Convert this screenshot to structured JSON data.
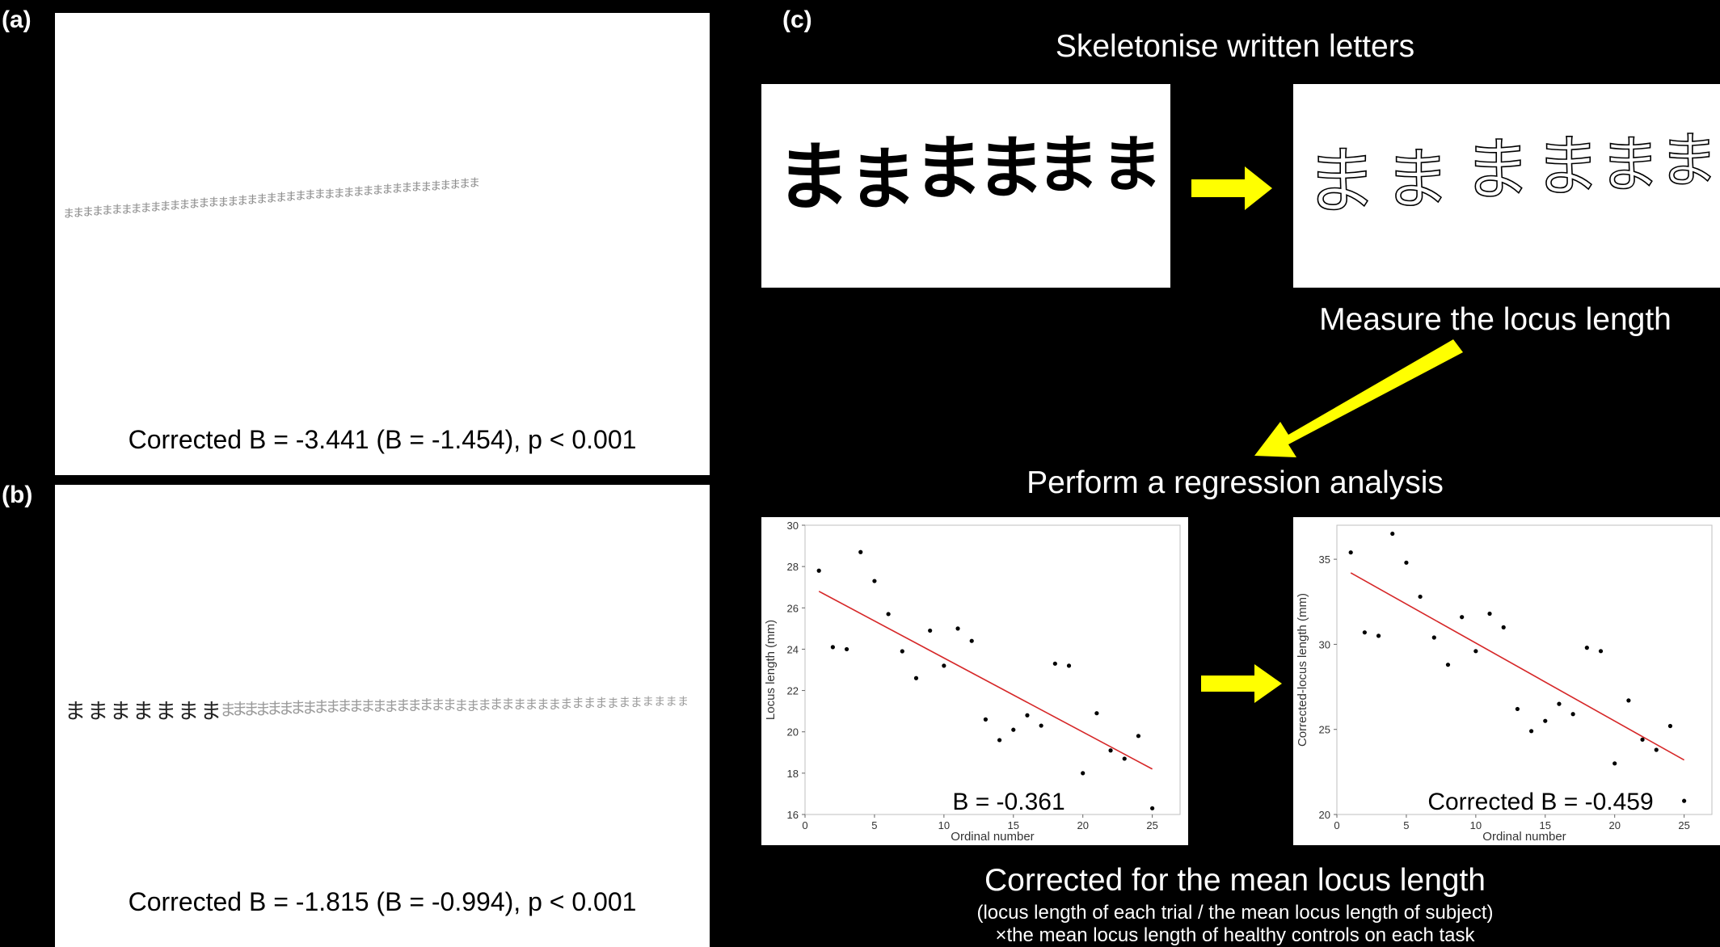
{
  "panel_a": {
    "label": "(a)",
    "caption": "Corrected B = -3.441 (B = -1.454), p < 0.001",
    "glyph": "ま"
  },
  "panel_b": {
    "label": "(b)",
    "caption": "Corrected B = -1.815 (B = -0.994), p < 0.001",
    "glyph": "ま"
  },
  "panel_c": {
    "label": "(c)",
    "step1_title": "Skeletonise written letters",
    "step2_title": "Measure the locus length",
    "step3_title": "Perform a regression analysis",
    "step4_title": "Corrected for the mean locus length",
    "step4_note_line1": "(locus length of each trial / the mean locus length of subject)",
    "step4_note_line2": "×the mean locus length of healthy controls on each task",
    "glyph": "ま",
    "arrow_color": "#ffff00"
  },
  "chart_data": [
    {
      "type": "scatter",
      "xlabel": "Ordinal number",
      "ylabel": "Locus length (mm)",
      "xlim": [
        0,
        27
      ],
      "ylim": [
        16,
        30
      ],
      "xticks": [
        0,
        5,
        10,
        15,
        20,
        25
      ],
      "yticks": [
        16,
        18,
        20,
        22,
        24,
        26,
        28,
        30
      ],
      "annotation": "B = -0.361",
      "point_color": "#000000",
      "line_color": "#d62728",
      "x": [
        1,
        2,
        3,
        4,
        5,
        6,
        7,
        8,
        9,
        10,
        11,
        12,
        13,
        14,
        15,
        16,
        17,
        18,
        19,
        20,
        21,
        22,
        23,
        24,
        25
      ],
      "y": [
        27.8,
        24.1,
        24.0,
        28.7,
        27.3,
        25.7,
        23.9,
        22.6,
        24.9,
        23.2,
        25.0,
        24.4,
        20.6,
        19.6,
        20.1,
        20.8,
        20.3,
        23.3,
        23.2,
        18.0,
        20.9,
        19.1,
        18.7,
        19.8,
        16.3
      ],
      "fit": {
        "x": [
          1,
          25
        ],
        "y": [
          26.8,
          18.2
        ]
      }
    },
    {
      "type": "scatter",
      "xlabel": "Ordinal number",
      "ylabel": "Corrected-locus length (mm)",
      "xlim": [
        0,
        27
      ],
      "ylim": [
        20,
        37
      ],
      "xticks": [
        0,
        5,
        10,
        15,
        20,
        25
      ],
      "yticks": [
        20,
        25,
        30,
        35
      ],
      "annotation": "Corrected B = -0.459",
      "point_color": "#000000",
      "line_color": "#d62728",
      "x": [
        1,
        2,
        3,
        4,
        5,
        6,
        7,
        8,
        9,
        10,
        11,
        12,
        13,
        14,
        15,
        16,
        17,
        18,
        19,
        20,
        21,
        22,
        23,
        24,
        25
      ],
      "y": [
        35.4,
        30.7,
        30.5,
        36.5,
        34.8,
        32.8,
        30.4,
        28.8,
        31.6,
        29.6,
        31.8,
        31.0,
        26.2,
        24.9,
        25.5,
        26.5,
        25.9,
        29.8,
        29.6,
        23.0,
        26.7,
        24.4,
        23.8,
        25.2,
        20.8
      ],
      "fit": {
        "x": [
          1,
          25
        ],
        "y": [
          34.2,
          23.2
        ]
      }
    }
  ]
}
